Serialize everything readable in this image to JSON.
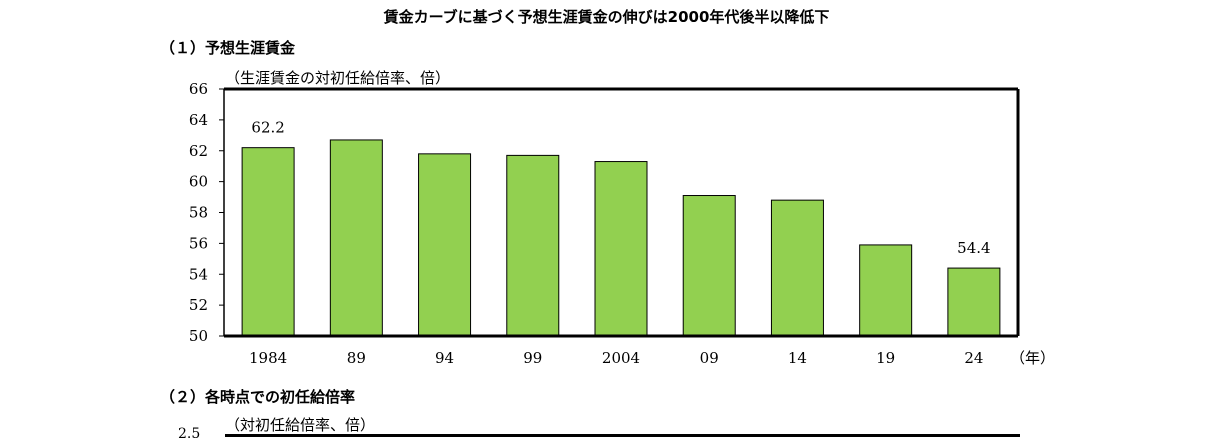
{
  "title": "賃金カーブに基づく予想生涯賃金の伸びは2000年代後半以降低下",
  "section1": {
    "title": "（１）予想生涯賃金"
  },
  "section2": {
    "title": "（２）各時点での初任給倍率",
    "unit": "（対初任給倍率、倍）",
    "partial_tick": "2.5"
  },
  "colors": {
    "bar": "#92d050",
    "axis": "#000000"
  },
  "chart_data": [
    {
      "type": "bar",
      "title": "",
      "unit": "（生涯賃金の対初任給倍率、倍）",
      "categories": [
        "1984",
        "89",
        "94",
        "99",
        "2004",
        "09",
        "14",
        "19",
        "24"
      ],
      "values": [
        62.2,
        62.7,
        61.8,
        61.7,
        61.3,
        59.1,
        58.8,
        55.9,
        54.4
      ],
      "data_labels": [
        {
          "index": 0,
          "text": "62.2"
        },
        {
          "index": 8,
          "text": "54.4"
        }
      ],
      "xlabel": "（年）",
      "ylabel": "",
      "ylim": [
        50,
        66
      ],
      "yticks": [
        50,
        52,
        54,
        56,
        58,
        60,
        62,
        64,
        66
      ],
      "grid": false,
      "legend": "none"
    }
  ]
}
